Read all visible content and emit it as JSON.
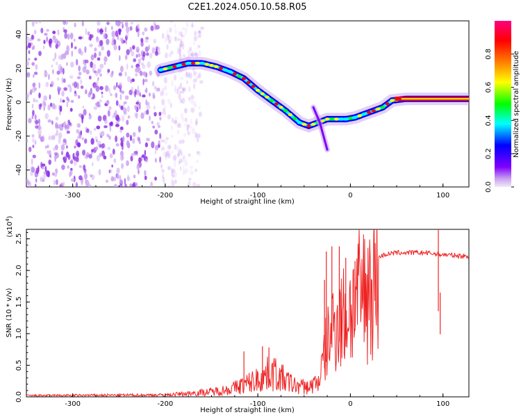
{
  "title": "C2E1.2024.050.10.58.R05",
  "chart_data": [
    {
      "type": "heatmap",
      "xlabel": "Height of straight line (km)",
      "ylabel": "Frequency (Hz)",
      "xlim": [
        -350,
        128
      ],
      "ylim": [
        -50,
        48
      ],
      "x_ticks": [
        -300,
        -200,
        -100,
        0,
        100
      ],
      "y_ticks": [
        -40,
        -20,
        0,
        20,
        40
      ],
      "colorbar": {
        "label": "Normalized spectral amplitude",
        "range": [
          0,
          1
        ],
        "ticks": [
          0.0,
          0.2,
          0.4,
          0.6,
          0.8
        ],
        "colors": [
          "#e8d8f8",
          "#8000ff",
          "#0000ff",
          "#00ffff",
          "#00ff00",
          "#ffff00",
          "#ff8000",
          "#ff0000",
          "#ff0080"
        ]
      },
      "noise_region": {
        "x_range": [
          -350,
          -190
        ],
        "color": "#8a2be2"
      },
      "ridge": {
        "x": [
          -205,
          -190,
          -175,
          -160,
          -145,
          -130,
          -115,
          -100,
          -85,
          -70,
          -55,
          -45,
          -35,
          -25,
          -15,
          -5,
          5,
          15,
          25,
          35,
          45,
          60,
          80,
          100,
          128
        ],
        "y": [
          19,
          21,
          23,
          23,
          21,
          18,
          14,
          7,
          1,
          -5,
          -12,
          -14,
          -12,
          -10,
          -10,
          -10,
          -9,
          -7,
          -5,
          -3,
          1,
          2,
          2,
          2,
          2
        ]
      },
      "branch": {
        "x": [
          -40,
          -33,
          -27,
          -25
        ],
        "y": [
          -3,
          -12,
          -24,
          -28
        ]
      }
    },
    {
      "type": "line",
      "xlabel": "Height of straight line (km)",
      "ylabel": "SNR (10 * v/v)",
      "yscale_label": "(x10",
      "yscale_exp": "4",
      "yscale_close": ")",
      "xlim": [
        -350,
        128
      ],
      "ylim": [
        0,
        2.65
      ],
      "x_ticks": [
        -300,
        -200,
        -100,
        0,
        100
      ],
      "y_ticks": [
        0.0,
        0.5,
        1.0,
        1.5,
        2.0,
        2.5
      ],
      "line_color": "#ee2222",
      "envelope": {
        "x": [
          -350,
          -200,
          -180,
          -150,
          -130,
          -110,
          -95,
          -85,
          -75,
          -60,
          -45,
          -35,
          -30,
          -25,
          -20,
          -15,
          -10,
          -5,
          0,
          5,
          10,
          15,
          20,
          25,
          30,
          35,
          40,
          50,
          60,
          80,
          100,
          128
        ],
        "y": [
          0.02,
          0.03,
          0.05,
          0.08,
          0.12,
          0.22,
          0.3,
          0.4,
          0.3,
          0.18,
          0.15,
          0.25,
          0.6,
          1.0,
          1.3,
          1.45,
          1.45,
          1.5,
          1.65,
          1.75,
          1.85,
          1.95,
          2.05,
          2.15,
          2.2,
          2.24,
          2.26,
          2.28,
          2.28,
          2.28,
          2.25,
          2.22
        ]
      },
      "spikes": [
        {
          "x": -115,
          "y": 0.72
        },
        {
          "x": -95,
          "y": 0.8
        },
        {
          "x": -88,
          "y": 0.78
        },
        {
          "x": -28,
          "y": 1.85
        },
        {
          "x": -26,
          "y": 2.3
        },
        {
          "x": -20,
          "y": 2.38
        },
        {
          "x": -12,
          "y": 2.38
        },
        {
          "x": -5,
          "y": 2.2
        },
        {
          "x": 5,
          "y": 2.15
        },
        {
          "x": 95,
          "y": 2.65
        },
        {
          "x": 97,
          "y": 1.65
        }
      ]
    }
  ]
}
